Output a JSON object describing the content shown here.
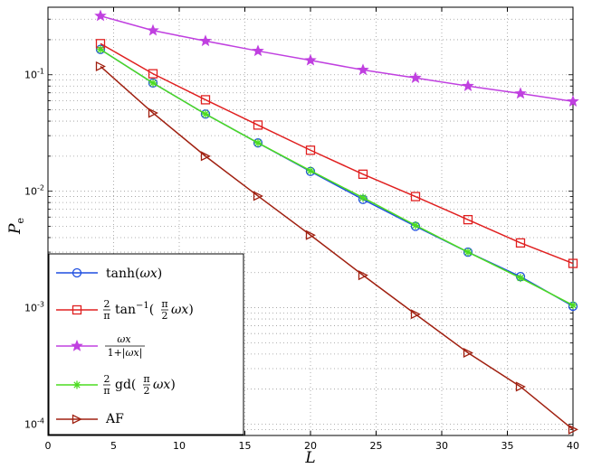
{
  "chart_data": {
    "type": "line",
    "xlabel": "L",
    "ylabel": {
      "main": "P",
      "sub": "e"
    },
    "xlim": [
      0,
      40
    ],
    "ylim": [
      8e-05,
      0.38
    ],
    "yscale": "log",
    "xticks": [
      0,
      5,
      10,
      15,
      20,
      25,
      30,
      35,
      40
    ],
    "yticks": [
      {
        "value": 0.1,
        "base": "10",
        "exp": "-1"
      },
      {
        "value": 0.01,
        "base": "10",
        "exp": "-2"
      },
      {
        "value": 0.001,
        "base": "10",
        "exp": "-3"
      },
      {
        "value": 0.0001,
        "base": "10",
        "exp": "-4"
      }
    ],
    "grid": true,
    "legend_position": "bottom-left",
    "x": [
      4,
      8,
      12,
      16,
      20,
      24,
      28,
      32,
      36,
      40
    ],
    "series": [
      {
        "name": "tanh(ωx)",
        "label_html": "tanh(<tspan font-style='italic'>ωx</tspan>)",
        "color": "#1f4fe0",
        "marker": "circle",
        "values": [
          0.165,
          0.085,
          0.046,
          0.026,
          0.0148,
          0.0085,
          0.005,
          0.003,
          0.00185,
          0.00103
        ]
      },
      {
        "name": "2/π tan⁻¹(π/2 ωx)",
        "color": "#e02020",
        "marker": "square",
        "values": [
          0.185,
          0.102,
          0.061,
          0.037,
          0.0225,
          0.014,
          0.009,
          0.0057,
          0.0036,
          0.0024
        ]
      },
      {
        "name": "ωx/(1+|ωx|)",
        "color": "#c040e0",
        "marker": "star",
        "values": [
          0.32,
          0.24,
          0.195,
          0.16,
          0.133,
          0.11,
          0.094,
          0.08,
          0.069,
          0.059
        ]
      },
      {
        "name": "2/π gd(π/2 ωx)",
        "color": "#4cdc20",
        "marker": "asterisk",
        "values": [
          0.165,
          0.085,
          0.046,
          0.026,
          0.015,
          0.0088,
          0.0051,
          0.003,
          0.0018,
          0.00105
        ]
      },
      {
        "name": "AF",
        "color": "#a02010",
        "marker": "triangle-right",
        "values": [
          0.118,
          0.047,
          0.02,
          0.0091,
          0.0042,
          0.0019,
          0.00088,
          0.00041,
          0.00021,
          9e-05
        ]
      }
    ]
  }
}
